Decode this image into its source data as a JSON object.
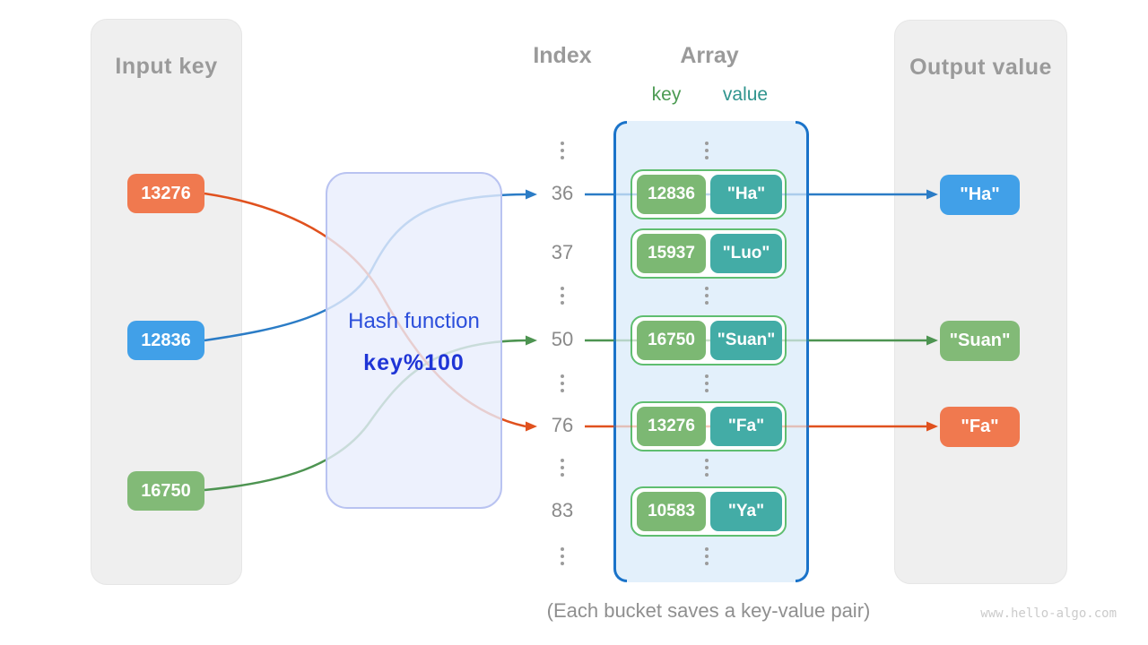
{
  "panels": {
    "input": {
      "title": "Input key"
    },
    "output": {
      "title": "Output value"
    }
  },
  "headers": {
    "index": "Index",
    "array": "Array",
    "key_label": "key",
    "value_label": "value",
    "key_label_color": "#4c9b53",
    "value_label_color": "#2f948e"
  },
  "hash_box": {
    "line1": "Hash function",
    "line2": "key%100"
  },
  "inputs": [
    {
      "label": "13276",
      "color": "#f0794f"
    },
    {
      "label": "12836",
      "color": "#41a0e8"
    },
    {
      "label": "16750",
      "color": "#82ba77"
    }
  ],
  "index_rows": [
    "dots",
    "36",
    "37",
    "dots",
    "50",
    "dots",
    "76",
    "dots",
    "83",
    "dots"
  ],
  "buckets": [
    {
      "index": "36",
      "key": "12836",
      "value": "\"Ha\""
    },
    {
      "index": "37",
      "key": "15937",
      "value": "\"Luo\""
    },
    {
      "index": "50",
      "key": "16750",
      "value": "\"Suan\""
    },
    {
      "index": "76",
      "key": "13276",
      "value": "\"Fa\""
    },
    {
      "index": "83",
      "key": "10583",
      "value": "\"Ya\""
    }
  ],
  "outputs": [
    {
      "label": "\"Ha\"",
      "index": "36",
      "color": "#41a0e8"
    },
    {
      "label": "\"Suan\"",
      "index": "50",
      "color": "#82ba77"
    },
    {
      "label": "\"Fa\"",
      "index": "76",
      "color": "#f0794f"
    }
  ],
  "connections": [
    {
      "input": "12836",
      "index": "36",
      "output": "\"Ha\"",
      "color": "#2b7cc6"
    },
    {
      "input": "16750",
      "index": "50",
      "output": "\"Suan\"",
      "color": "#4d9451"
    },
    {
      "input": "13276",
      "index": "76",
      "output": "\"Fa\"",
      "color": "#e0511e"
    }
  ],
  "caption": "(Each bucket saves a key-value pair)",
  "watermark": "www.hello-algo.com"
}
